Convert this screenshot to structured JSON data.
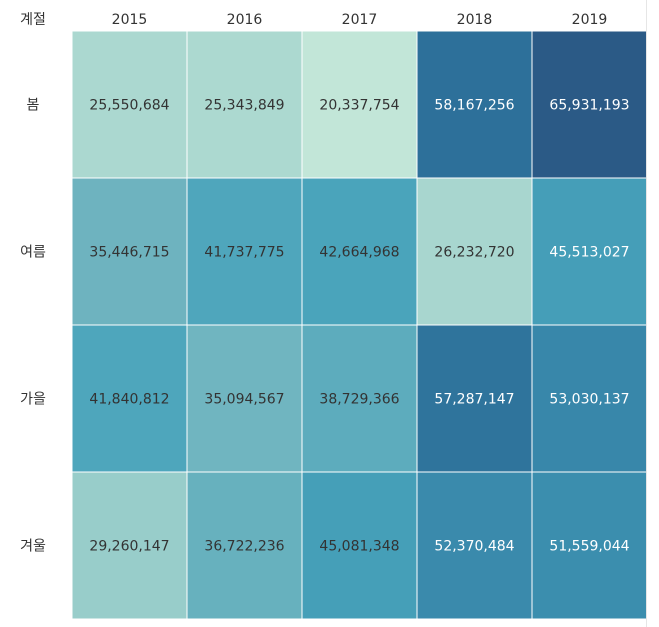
{
  "chart_data": {
    "type": "heatmap",
    "row_header": "계절",
    "columns": [
      "2015",
      "2016",
      "2017",
      "2018",
      "2019"
    ],
    "rows": [
      "봄",
      "여름",
      "가을",
      "겨울"
    ],
    "values": [
      [
        25550684,
        25343849,
        20337754,
        58167256,
        65931193
      ],
      [
        35446715,
        41737775,
        42664968,
        26232720,
        45513027
      ],
      [
        41840812,
        35094567,
        38729366,
        57287147,
        53030137
      ],
      [
        29260147,
        36722236,
        45081348,
        52370484,
        51559044
      ]
    ],
    "labels": [
      [
        "25,550,684",
        "25,343,849",
        "20,337,754",
        "58,167,256",
        "65,931,193"
      ],
      [
        "35,446,715",
        "41,737,775",
        "42,664,968",
        "26,232,720",
        "45,513,027"
      ],
      [
        "41,840,812",
        "35,094,567",
        "38,729,366",
        "57,287,147",
        "53,030,137"
      ],
      [
        "29,260,147",
        "36,722,236",
        "45,081,348",
        "52,370,484",
        "51,559,044"
      ]
    ],
    "color_scale": {
      "min": 20337754,
      "max": 65931193,
      "stops": [
        "#c2e6d8",
        "#a1d2cc",
        "#6db3bf",
        "#48a3bb",
        "#3d92b1",
        "#2d6f99",
        "#2b5a86"
      ]
    },
    "label_colors": {
      "dark": "#333333",
      "light": "#ffffff"
    }
  }
}
